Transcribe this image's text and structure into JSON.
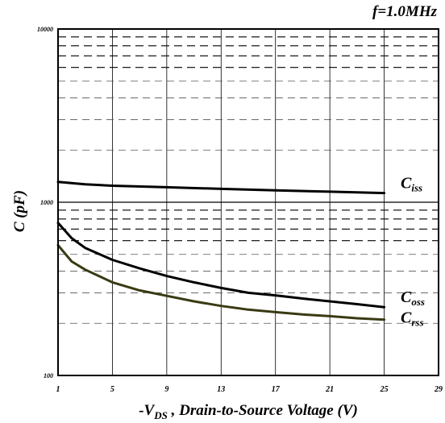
{
  "chart_data": {
    "type": "line",
    "annotation": "f=1.0MHz",
    "ylabel": "C (pF)",
    "xlabel": {
      "prefix": "-V",
      "subscript": "DS",
      "suffix": " , Drain-to-Source Voltage (V)"
    },
    "xlim": [
      1,
      29
    ],
    "ylim": [
      100,
      10000
    ],
    "yscale": "log",
    "grid": true,
    "x_ticks": [
      "1",
      "5",
      "9",
      "13",
      "17",
      "21",
      "25",
      "29"
    ],
    "y_ticks": [
      {
        "value": 100,
        "label": "100"
      },
      {
        "value": 1000,
        "label": "1000"
      },
      {
        "value": 10000,
        "label": "10000"
      }
    ],
    "series": [
      {
        "name": "iss",
        "label_main": "C",
        "label_sub": "iss",
        "color": "#000000",
        "x": [
          1,
          3,
          5,
          9,
          13,
          17,
          21,
          25
        ],
        "y": [
          1310,
          1270,
          1245,
          1220,
          1195,
          1170,
          1150,
          1130
        ]
      },
      {
        "name": "oss",
        "label_main": "C",
        "label_sub": "oss",
        "color": "#000000",
        "x": [
          1,
          2,
          3,
          5,
          7,
          9,
          11,
          13,
          15,
          17,
          19,
          21,
          23,
          25
        ],
        "y": [
          760,
          620,
          545,
          465,
          415,
          375,
          345,
          320,
          300,
          290,
          278,
          268,
          258,
          248
        ]
      },
      {
        "name": "rss",
        "label_main": "C",
        "label_sub": "rss",
        "color": "#3a3a14",
        "x": [
          1,
          2,
          3,
          5,
          7,
          9,
          11,
          13,
          15,
          17,
          19,
          21,
          23,
          25
        ],
        "y": [
          565,
          455,
          408,
          345,
          310,
          288,
          268,
          252,
          240,
          232,
          225,
          220,
          214,
          210
        ]
      }
    ]
  }
}
